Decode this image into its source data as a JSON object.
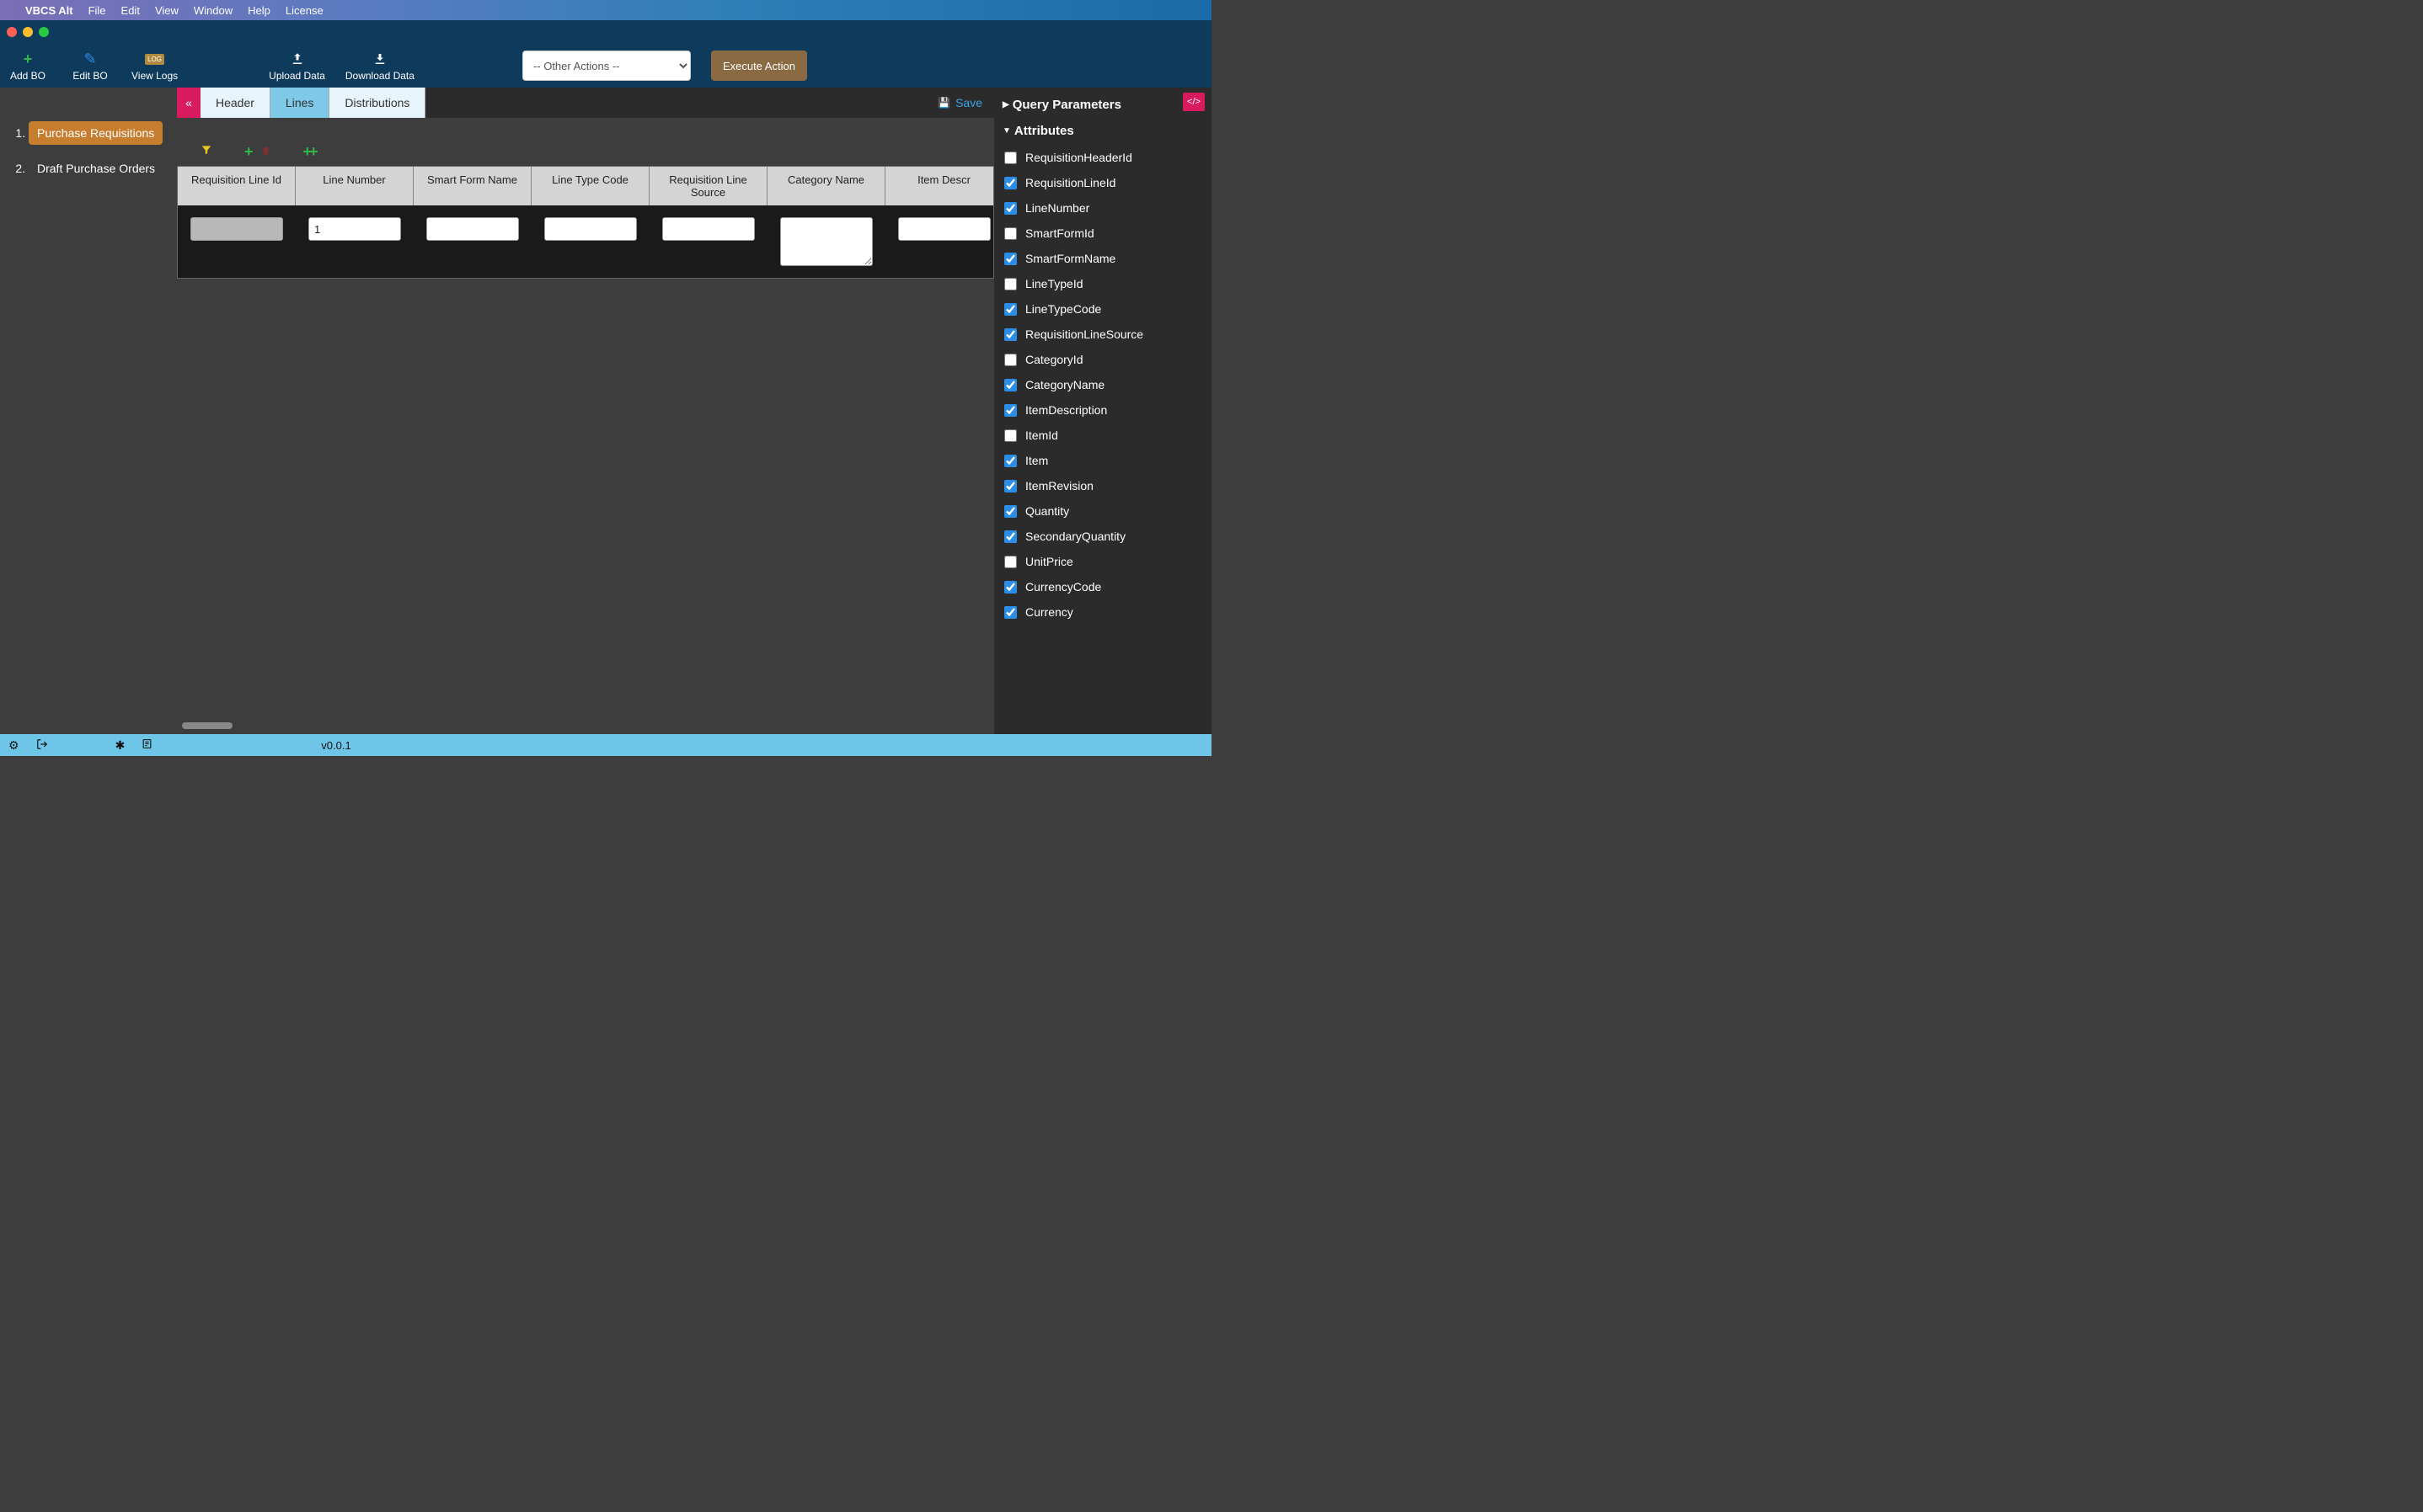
{
  "menubar": {
    "appname": "VBCS Alt",
    "items": [
      "File",
      "Edit",
      "View",
      "Window",
      "Help",
      "License"
    ]
  },
  "toolbar": {
    "add_bo": "Add BO",
    "edit_bo": "Edit BO",
    "view_logs": "View Logs",
    "upload_data": "Upload Data",
    "download_data": "Download Data",
    "action_select_placeholder": "-- Other Actions --",
    "execute_label": "Execute Action"
  },
  "sidebar_left": {
    "items": [
      {
        "label": "Purchase Requisitions",
        "active": true
      },
      {
        "label": "Draft Purchase Orders",
        "active": false
      }
    ]
  },
  "tabs": [
    {
      "label": "Header",
      "active": false
    },
    {
      "label": "Lines",
      "active": true
    },
    {
      "label": "Distributions",
      "active": false
    }
  ],
  "save_label": "Save",
  "grid": {
    "columns": [
      "Requisition Line Id",
      "Line Number",
      "Smart Form Name",
      "Line Type Code",
      "Requisition Line Source",
      "Category Name",
      "Item Descr"
    ],
    "row": {
      "requisition_line_id": "",
      "line_number": "1",
      "smart_form_name": "",
      "line_type_code": "",
      "requisition_line_source": "",
      "category_name": "",
      "item_description": ""
    }
  },
  "right_panel": {
    "query_parameters_label": "Query Parameters",
    "attributes_label": "Attributes",
    "attributes": [
      {
        "label": "RequisitionHeaderId",
        "checked": false
      },
      {
        "label": "RequisitionLineId",
        "checked": true
      },
      {
        "label": "LineNumber",
        "checked": true
      },
      {
        "label": "SmartFormId",
        "checked": false
      },
      {
        "label": "SmartFormName",
        "checked": true
      },
      {
        "label": "LineTypeId",
        "checked": false
      },
      {
        "label": "LineTypeCode",
        "checked": true
      },
      {
        "label": "RequisitionLineSource",
        "checked": true
      },
      {
        "label": "CategoryId",
        "checked": false
      },
      {
        "label": "CategoryName",
        "checked": true
      },
      {
        "label": "ItemDescription",
        "checked": true
      },
      {
        "label": "ItemId",
        "checked": false
      },
      {
        "label": "Item",
        "checked": true
      },
      {
        "label": "ItemRevision",
        "checked": true
      },
      {
        "label": "Quantity",
        "checked": true
      },
      {
        "label": "SecondaryQuantity",
        "checked": true
      },
      {
        "label": "UnitPrice",
        "checked": false
      },
      {
        "label": "CurrencyCode",
        "checked": true
      },
      {
        "label": "Currency",
        "checked": true
      }
    ]
  },
  "statusbar": {
    "version": "v0.0.1"
  },
  "colors": {
    "menubar_grad_start": "#7b6eb5",
    "menubar_grad_end": "#1a6ba8",
    "titlebar_bg": "#0e3a5c",
    "toolbar_bg": "#0e3a5c",
    "sidebar_bg": "#3d3d3d",
    "active_item_bg": "#c77d2e",
    "tab_active_bg": "#7ec8e8",
    "tab_inactive_bg": "#e8f4fb",
    "accent_pink": "#d81b5f",
    "execute_btn_bg": "#8a6a42",
    "save_color": "#3ba3e8",
    "plus_green": "#2fb84d",
    "filter_yellow": "#e8c820",
    "checkbox_accent": "#2b8de6",
    "statusbar_bg": "#6ec5e8",
    "grid_header_bg": "#d4d4d4",
    "grid_body_bg": "#1a1a1a"
  }
}
